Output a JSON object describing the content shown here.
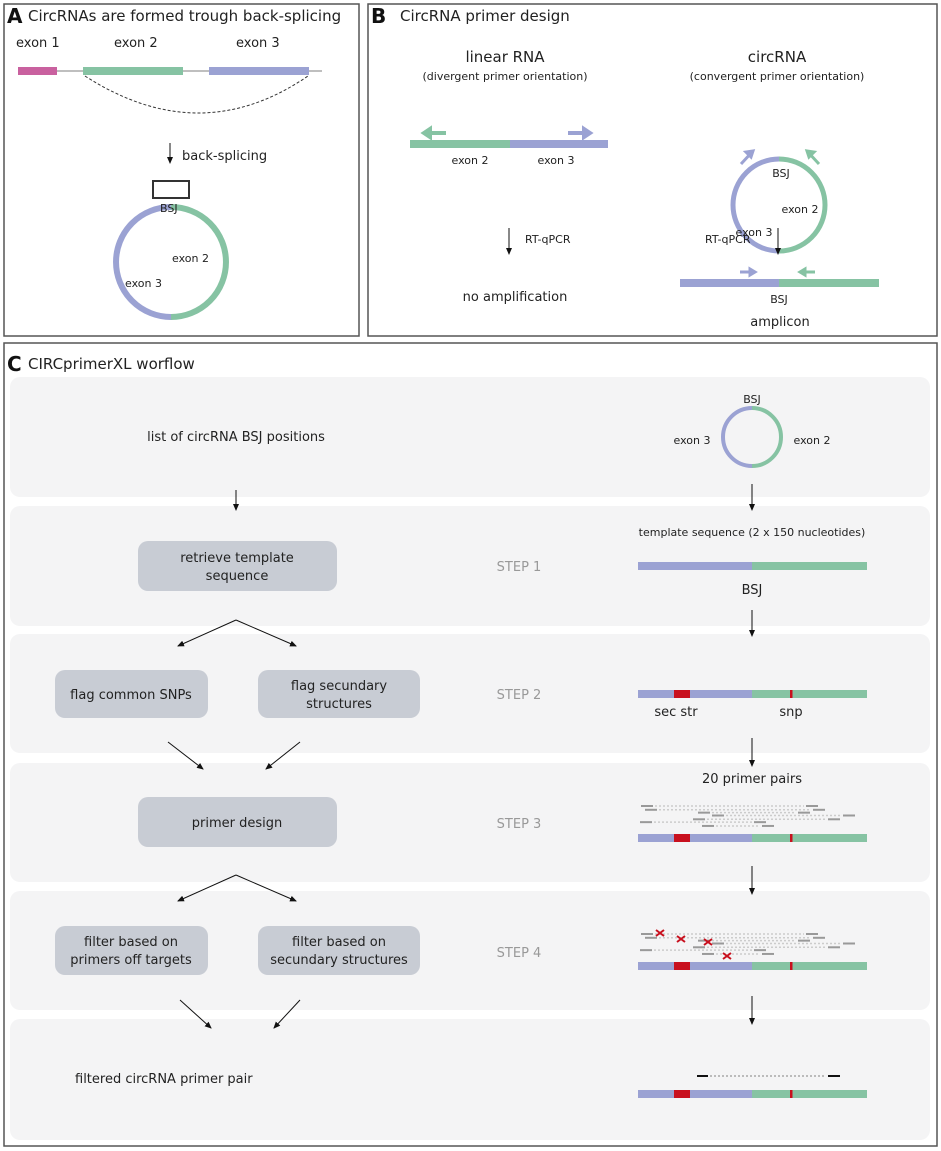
{
  "panel_a": {
    "label": "A",
    "title": "CircRNAs are formed trough back-splicing",
    "exon1": "exon 1",
    "exon2": "exon 2",
    "exon3": "exon 3",
    "arrow_label": "back-splicing",
    "bsj": "BSJ",
    "circ_exon2": "exon 2",
    "circ_exon3": "exon 3"
  },
  "panel_b": {
    "label": "B",
    "title": "CircRNA primer design",
    "linear_title": "linear RNA",
    "linear_subtitle": "(divergent primer orientation)",
    "linear_exon2": "exon 2",
    "linear_exon3": "exon 3",
    "circ_title": "circRNA",
    "circ_subtitle": "(convergent primer orientation)",
    "circ_bsj": "BSJ",
    "circ_exon2": "exon 2",
    "circ_exon3": "exon 3",
    "rtqpcr_left": "RT-qPCR",
    "rtqpcr_right": "RT-qPCR",
    "no_amp": "no amplification",
    "amp_bsj": "BSJ",
    "amplicon": "amplicon"
  },
  "panel_c": {
    "label": "C",
    "title": "CIRCprimerXL worflow",
    "input": "list of circRNA BSJ positions",
    "circle_bsj": "BSJ",
    "circle_exon3": "exon 3",
    "circle_exon2": "exon 2",
    "template_label": "template sequence (2 x 150 nucleotides)",
    "retrieve_1": "retrieve template",
    "retrieve_2": "sequence",
    "step1": "STEP 1",
    "bsj1": "BSJ",
    "flag_snps": "flag common SNPs",
    "flag_sec_1": "flag secundary",
    "flag_sec_2": "structures",
    "step2": "STEP 2",
    "sec_str": "sec str",
    "snp": "snp",
    "pairs_label": "20 primer pairs",
    "primer_design": "primer design",
    "step3": "STEP 3",
    "filter_off_1": "filter based on",
    "filter_off_2": "primers off targets",
    "filter_sec_1": "filter based on",
    "filter_sec_2": "secundary structures",
    "step4": "STEP 4",
    "output": "filtered circRNA primer pair"
  },
  "colors": {
    "exon1": "#c9619f",
    "exon2": "#86c3a3",
    "exon3": "#9ba2d3",
    "red": "#c8101e",
    "step": "#999999"
  }
}
